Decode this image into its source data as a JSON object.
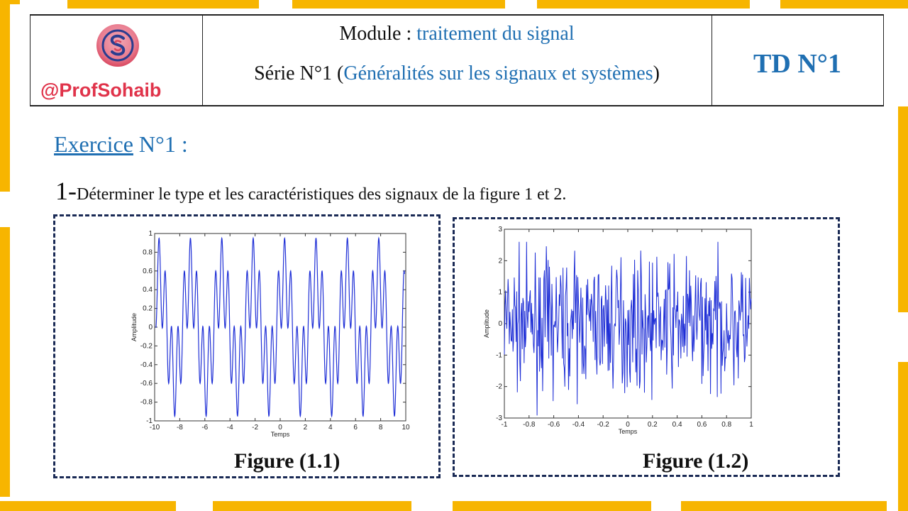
{
  "header": {
    "handle": "@ProfSohaib",
    "module_label": "Module : ",
    "module_name": "traitement du signal",
    "serie_label": "Série N°1 (",
    "serie_name": "Généralités sur les signaux et systèmes",
    "serie_close": ")",
    "td_label": "TD N°1"
  },
  "exercise": {
    "title_word": "Exercice",
    "title_rest": " N°1 :",
    "question_number": "1-",
    "question_text": "Déterminer le type et les caractéristiques des signaux de la figure 1 et 2."
  },
  "colors": {
    "accent_blue": "#1f6fb2",
    "frame_yellow": "#f7b500",
    "handle_red": "#e0334a",
    "plot_line": "#1f2fd6"
  },
  "logo": {
    "icon": "ss-monogram-logo"
  },
  "chart_data": [
    {
      "type": "line",
      "caption": "Figure (1.1)",
      "xlabel": "Temps",
      "ylabel": "Amplitude",
      "xlim": [
        -10,
        10
      ],
      "ylim": [
        -1,
        1
      ],
      "xticks": [
        "-10",
        "-8",
        "-6",
        "-4",
        "-2",
        "0",
        "2",
        "4",
        "6",
        "8",
        "10"
      ],
      "yticks": [
        "1",
        "0.8",
        "0.6",
        "0.4",
        "0.2",
        "0",
        "-0.2",
        "-0.4",
        "-0.6",
        "-0.8",
        "-1"
      ],
      "period": 2.5,
      "peak_max": 0.95,
      "peak_min": -0.95
    },
    {
      "type": "line",
      "caption": "Figure (1.2)",
      "xlabel": "Temps",
      "ylabel": "Amplitude",
      "xlim": [
        -1,
        1
      ],
      "ylim": [
        -3,
        3
      ],
      "xticks": [
        "-1",
        "-0.8",
        "-0.6",
        "-0.4",
        "-0.2",
        "0",
        "0.2",
        "0.4",
        "0.6",
        "0.8",
        "1"
      ],
      "yticks": [
        "3",
        "2",
        "1",
        "0",
        "-1",
        "-2",
        "-3"
      ],
      "signal": "random noise",
      "peak_max": 2.6,
      "peak_min": -3
    }
  ]
}
